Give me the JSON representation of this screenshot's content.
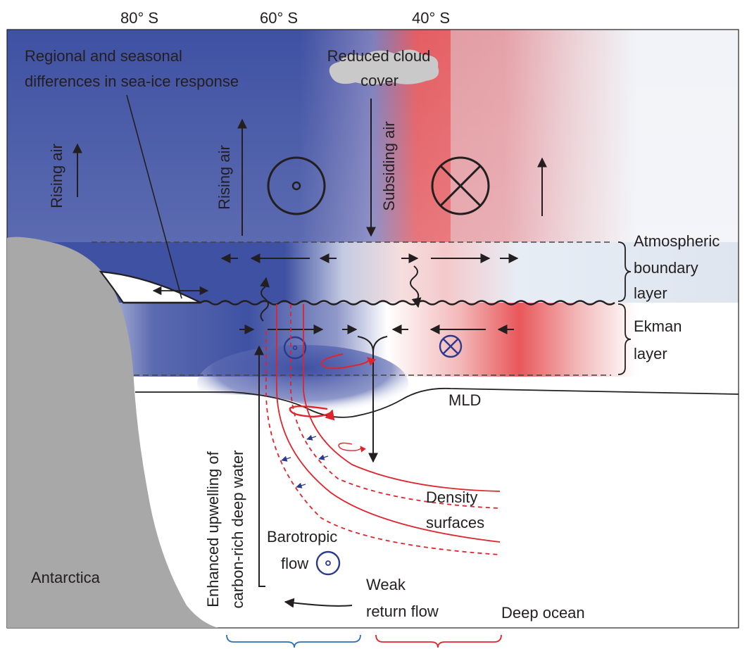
{
  "latitudes": [
    "80° S",
    "60° S",
    "40° S"
  ],
  "labels": {
    "sea_ice_line1": "Regional and seasonal",
    "sea_ice_line2": "differences in sea-ice response",
    "cloud_line1": "Reduced cloud",
    "cloud_line2": "cover",
    "rising_air_left": "Rising air",
    "rising_air_mid": "Rising air",
    "subsiding_air": "Subsiding air",
    "atm_line1": "Atmospheric",
    "atm_line2": "boundary",
    "atm_line3": "layer",
    "ekman_line1": "Ekman",
    "ekman_line2": "layer",
    "mld": "MLD",
    "density_line1": "Density",
    "density_line2": "surfaces",
    "barotropic_line1": "Barotropic",
    "barotropic_line2": "flow",
    "antarctica": "Antarctica",
    "upwelling_line1": "Enhanced upwelling of",
    "upwelling_line2": "carbon-rich deep water",
    "weak_line1": "Weak",
    "weak_line2": "return flow",
    "deep_ocean": "Deep ocean"
  },
  "colors": {
    "blue_anomaly": "#3f51a3",
    "red_anomaly": "#e8575a",
    "land": "#a8a8a8",
    "cloud": "#c9c9c9",
    "density_surfaces": "#e0242c",
    "brace_blue": "#2f6db5",
    "brace_red": "#e0242c",
    "ink": "#231f20"
  },
  "icons": [
    "out-of-page-symbol",
    "into-page-symbol",
    "rising-arrow",
    "subsiding-arrow",
    "wind-arrow",
    "eddy-arrow"
  ]
}
